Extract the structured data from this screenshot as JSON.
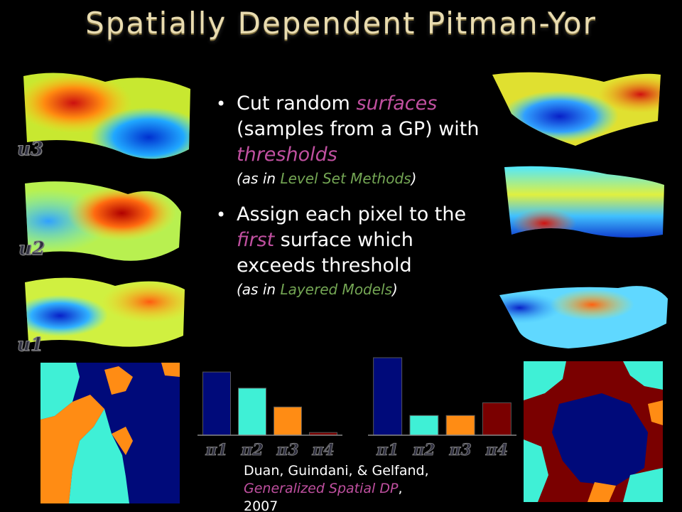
{
  "slide": {
    "title": "Spatially Dependent Pitman-Yor"
  },
  "bullets": [
    {
      "pre": "Cut random ",
      "em1": "surfaces",
      "mid": " (samples from a GP) with ",
      "em2": "thresholds",
      "sub_pre": "(as in ",
      "sub_em": "Level Set Methods",
      "sub_post": ")"
    },
    {
      "pre": "Assign each pixel to the ",
      "em1": "first",
      "mid": " surface which exceeds threshold",
      "sub_pre": "(as in ",
      "sub_em": "Layered Models",
      "sub_post": ")"
    }
  ],
  "surface_labels": [
    "u3",
    "u2",
    "u1"
  ],
  "bar_charts": [
    {
      "labels": [
        "π1",
        "π2",
        "π3",
        "π4"
      ],
      "values": [
        0.47,
        0.35,
        0.21,
        0.02
      ]
    },
    {
      "labels": [
        "π1",
        "π2",
        "π3",
        "π4"
      ],
      "values": [
        0.55,
        0.14,
        0.14,
        0.23
      ]
    }
  ],
  "citation": {
    "authors": "Duan, Guindani, & Gelfand,",
    "title": "Generalized Spatial DP",
    "title_post": ",",
    "year": "2007"
  },
  "colors": {
    "navy": "#000a7a",
    "cyan": "#3ff0d6",
    "orange": "#ff8c14",
    "maroon": "#7a0000"
  }
}
